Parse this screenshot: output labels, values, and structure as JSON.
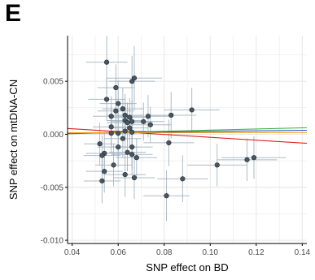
{
  "panel_label": "E",
  "chart_data": {
    "type": "scatter",
    "xlabel": "SNP effect on BD",
    "ylabel": "SNP effect on mtDNA-CN",
    "xlim": [
      0.038,
      0.142
    ],
    "ylim": [
      -0.0103,
      0.0093
    ],
    "x_ticks": [
      0.04,
      0.06,
      0.08,
      0.1,
      0.12,
      0.14
    ],
    "x_tick_labels": [
      "0.04",
      "0.06",
      "0.08",
      "0.10",
      "0.12",
      "0.14"
    ],
    "y_ticks": [
      -0.01,
      -0.005,
      0.0,
      0.005
    ],
    "y_tick_labels": [
      "-0.010",
      "-0.005",
      "0.000",
      "0.005"
    ],
    "grid": true,
    "colors": {
      "points": "#4a5560",
      "error_bars": "#9fb0bd",
      "grid": "#e6e6e6",
      "axis": "#000000"
    },
    "points": [
      {
        "x": 0.055,
        "y": 0.0068,
        "xerr": 0.009,
        "yerr": 0.003
      },
      {
        "x": 0.067,
        "y": 0.0053,
        "xerr": 0.012,
        "yerr": 0.003
      },
      {
        "x": 0.066,
        "y": 0.005,
        "xerr": 0.01,
        "yerr": 0.0024
      },
      {
        "x": 0.059,
        "y": 0.0044,
        "xerr": 0.008,
        "yerr": 0.0022
      },
      {
        "x": 0.055,
        "y": 0.0033,
        "xerr": 0.008,
        "yerr": 0.002
      },
      {
        "x": 0.06,
        "y": 0.0029,
        "xerr": 0.008,
        "yerr": 0.0022
      },
      {
        "x": 0.062,
        "y": 0.0024,
        "xerr": 0.009,
        "yerr": 0.002
      },
      {
        "x": 0.092,
        "y": 0.0023,
        "xerr": 0.012,
        "yerr": 0.0021
      },
      {
        "x": 0.059,
        "y": 0.0022,
        "xerr": 0.008,
        "yerr": 0.002
      },
      {
        "x": 0.057,
        "y": 0.0017,
        "xerr": 0.008,
        "yerr": 0.0019
      },
      {
        "x": 0.063,
        "y": 0.0018,
        "xerr": 0.008,
        "yerr": 0.002
      },
      {
        "x": 0.065,
        "y": 0.0016,
        "xerr": 0.009,
        "yerr": 0.0018
      },
      {
        "x": 0.073,
        "y": 0.0017,
        "xerr": 0.01,
        "yerr": 0.002
      },
      {
        "x": 0.083,
        "y": 0.0018,
        "xerr": 0.011,
        "yerr": 0.0022
      },
      {
        "x": 0.063,
        "y": 0.0013,
        "xerr": 0.008,
        "yerr": 0.0018
      },
      {
        "x": 0.066,
        "y": 0.0012,
        "xerr": 0.009,
        "yerr": 0.002
      },
      {
        "x": 0.071,
        "y": 0.0012,
        "xerr": 0.009,
        "yerr": 0.0018
      },
      {
        "x": 0.064,
        "y": 0.0011,
        "xerr": 0.009,
        "yerr": 0.0019
      },
      {
        "x": 0.074,
        "y": 0.0009,
        "xerr": 0.009,
        "yerr": 0.0017
      },
      {
        "x": 0.057,
        "y": 0.0007,
        "xerr": 0.008,
        "yerr": 0.0019
      },
      {
        "x": 0.065,
        "y": 0.0006,
        "xerr": 0.008,
        "yerr": 0.0017
      },
      {
        "x": 0.063,
        "y": 0.0003,
        "xerr": 0.009,
        "yerr": 0.0018
      },
      {
        "x": 0.057,
        "y": 0.0001,
        "xerr": 0.007,
        "yerr": 0.0019
      },
      {
        "x": 0.06,
        "y": 0.0001,
        "xerr": 0.008,
        "yerr": 0.002
      },
      {
        "x": 0.066,
        "y": 0.0002,
        "xerr": 0.009,
        "yerr": 0.0019
      },
      {
        "x": 0.062,
        "y": -0.0004,
        "xerr": 0.008,
        "yerr": 0.0018
      },
      {
        "x": 0.052,
        "y": -0.0009,
        "xerr": 0.007,
        "yerr": 0.002
      },
      {
        "x": 0.082,
        "y": -0.0008,
        "xerr": 0.011,
        "yerr": 0.0022
      },
      {
        "x": 0.06,
        "y": -0.0012,
        "xerr": 0.009,
        "yerr": 0.0019
      },
      {
        "x": 0.066,
        "y": -0.0012,
        "xerr": 0.009,
        "yerr": 0.002
      },
      {
        "x": 0.064,
        "y": -0.0017,
        "xerr": 0.008,
        "yerr": 0.0018
      },
      {
        "x": 0.054,
        "y": -0.0018,
        "xerr": 0.008,
        "yerr": 0.0019
      },
      {
        "x": 0.053,
        "y": -0.002,
        "xerr": 0.008,
        "yerr": 0.0019
      },
      {
        "x": 0.066,
        "y": -0.0019,
        "xerr": 0.009,
        "yerr": 0.002
      },
      {
        "x": 0.068,
        "y": -0.0022,
        "xerr": 0.009,
        "yerr": 0.0018
      },
      {
        "x": 0.058,
        "y": -0.0029,
        "xerr": 0.008,
        "yerr": 0.002
      },
      {
        "x": 0.119,
        "y": -0.0022,
        "xerr": 0.014,
        "yerr": 0.002
      },
      {
        "x": 0.116,
        "y": -0.0024,
        "xerr": 0.013,
        "yerr": 0.002
      },
      {
        "x": 0.103,
        "y": -0.0029,
        "xerr": 0.013,
        "yerr": 0.002
      },
      {
        "x": 0.054,
        "y": -0.0035,
        "xerr": 0.008,
        "yerr": 0.002
      },
      {
        "x": 0.063,
        "y": -0.0038,
        "xerr": 0.009,
        "yerr": 0.0021
      },
      {
        "x": 0.067,
        "y": -0.0041,
        "xerr": 0.009,
        "yerr": 0.002
      },
      {
        "x": 0.088,
        "y": -0.0042,
        "xerr": 0.011,
        "yerr": 0.0022
      },
      {
        "x": 0.053,
        "y": -0.0044,
        "xerr": 0.008,
        "yerr": 0.0021
      },
      {
        "x": 0.081,
        "y": -0.0058,
        "xerr": 0.01,
        "yerr": 0.0024
      }
    ],
    "lines": [
      {
        "color": "#e02020",
        "x": [
          0.038,
          0.142
        ],
        "y": [
          0.00055,
          -0.00085
        ]
      },
      {
        "color": "#3cb043",
        "x": [
          0.038,
          0.142
        ],
        "y": [
          5e-05,
          0.00062
        ]
      },
      {
        "color": "#1f4fbf",
        "x": [
          0.038,
          0.142
        ],
        "y": [
          0.00012,
          0.00038
        ]
      },
      {
        "color": "#f0a020",
        "x": [
          0.038,
          0.142
        ],
        "y": [
          0.00015,
          0.00016
        ]
      }
    ]
  }
}
